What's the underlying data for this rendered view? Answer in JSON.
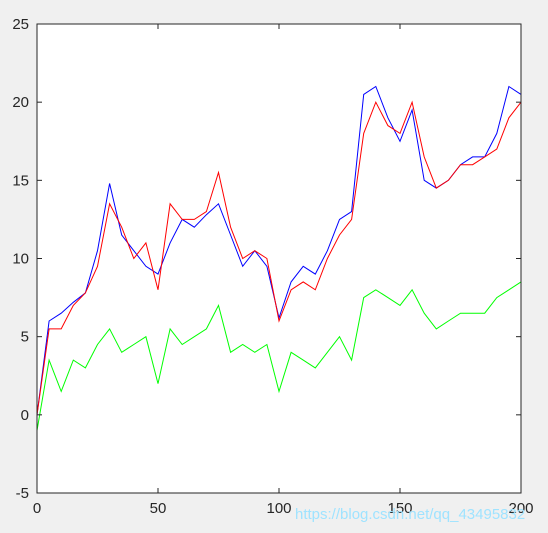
{
  "chart_data": {
    "type": "line",
    "title": "",
    "xlabel": "",
    "ylabel": "",
    "xlim": [
      0,
      200
    ],
    "ylim": [
      -5,
      25
    ],
    "xticks": [
      0,
      50,
      100,
      150,
      200
    ],
    "yticks": [
      -5,
      0,
      5,
      10,
      15,
      20,
      25
    ],
    "grid": false,
    "legend": "none",
    "series": [
      {
        "color": "#0000ff",
        "x": [
          0,
          5,
          10,
          15,
          20,
          25,
          30,
          35,
          40,
          45,
          50,
          55,
          60,
          65,
          70,
          75,
          80,
          85,
          90,
          95,
          100,
          105,
          110,
          115,
          120,
          125,
          130,
          135,
          140,
          145,
          150,
          155,
          160,
          165,
          170,
          175,
          180,
          185,
          190,
          195,
          200
        ],
        "y": [
          0,
          6.0,
          6.5,
          7.2,
          7.8,
          10.5,
          14.8,
          11.5,
          10.5,
          9.5,
          9.0,
          11.0,
          12.5,
          12.0,
          12.8,
          13.5,
          11.5,
          9.5,
          10.5,
          9.5,
          6.2,
          8.5,
          9.5,
          9.0,
          10.5,
          12.5,
          13.0,
          20.5,
          21.0,
          19.0,
          17.5,
          19.5,
          15.0,
          14.5,
          15.0,
          16.0,
          16.5,
          16.5,
          18.0,
          21.0,
          20.5
        ]
      },
      {
        "color": "#ff0000",
        "x": [
          0,
          5,
          10,
          15,
          20,
          25,
          30,
          35,
          40,
          45,
          50,
          55,
          60,
          65,
          70,
          75,
          80,
          85,
          90,
          95,
          100,
          105,
          110,
          115,
          120,
          125,
          130,
          135,
          140,
          145,
          150,
          155,
          160,
          165,
          170,
          175,
          180,
          185,
          190,
          195,
          200
        ],
        "y": [
          0,
          5.5,
          5.5,
          7.0,
          7.8,
          9.5,
          13.5,
          12.0,
          10.0,
          11.0,
          8.0,
          13.5,
          12.5,
          12.5,
          13.0,
          15.5,
          12.0,
          10.0,
          10.5,
          10.0,
          6.0,
          8.0,
          8.5,
          8.0,
          10.0,
          11.5,
          12.5,
          18.0,
          20.0,
          18.5,
          18.0,
          20.0,
          16.5,
          14.5,
          15.0,
          16.0,
          16.0,
          16.5,
          17.0,
          19.0,
          20.0
        ]
      },
      {
        "color": "#00ff00",
        "x": [
          0,
          5,
          10,
          15,
          20,
          25,
          30,
          35,
          40,
          45,
          50,
          55,
          60,
          65,
          70,
          75,
          80,
          85,
          90,
          95,
          100,
          105,
          110,
          115,
          120,
          125,
          130,
          135,
          140,
          145,
          150,
          155,
          160,
          165,
          170,
          175,
          180,
          185,
          190,
          195,
          200
        ],
        "y": [
          -1.0,
          3.5,
          1.5,
          3.5,
          3.0,
          4.5,
          5.5,
          4.0,
          4.5,
          5.0,
          2.0,
          5.5,
          4.5,
          5.0,
          5.5,
          7.0,
          4.0,
          4.5,
          4.0,
          4.5,
          1.5,
          4.0,
          3.5,
          3.0,
          4.0,
          5.0,
          3.5,
          7.5,
          8.0,
          7.5,
          7.0,
          8.0,
          6.5,
          5.5,
          6.0,
          6.5,
          6.5,
          6.5,
          7.5,
          8.0,
          8.5
        ]
      }
    ]
  },
  "watermark": "https://blog.csdn.net/qq_43495832"
}
